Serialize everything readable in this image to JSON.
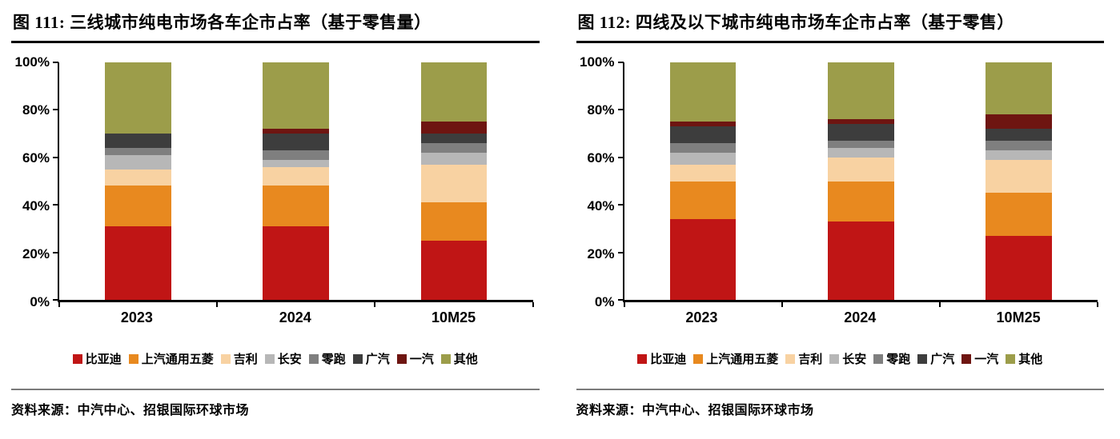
{
  "panels": [
    {
      "title": "图 111: 三线城市纯电市场各车企市占率（基于零售量）",
      "source_label": "资料来源：",
      "source_text": "中汽中心、招银国际环球市场"
    },
    {
      "title": "图 112: 四线及以下城市纯电市场车企市占率（基于零售）",
      "source_label": "资料来源：",
      "source_text": "中汽中心、招银国际环球市场"
    }
  ],
  "chart_data": [
    {
      "type": "bar",
      "stacked": true,
      "percent": true,
      "title": "图 111: 三线城市纯电市场各车企市占率（基于零售量）",
      "categories": [
        "2023",
        "2024",
        "10M25"
      ],
      "xlabel": "",
      "ylabel": "",
      "ylim": [
        0,
        100
      ],
      "y_ticks": [
        "0%",
        "20%",
        "40%",
        "60%",
        "80%",
        "100%"
      ],
      "grid": false,
      "legend_position": "bottom",
      "series": [
        {
          "name": "比亚迪",
          "color": "#c01515",
          "values": [
            31,
            31,
            25
          ]
        },
        {
          "name": "上汽通用五菱",
          "color": "#e8891f",
          "values": [
            17,
            17,
            16
          ]
        },
        {
          "name": "吉利",
          "color": "#f8d2a2",
          "values": [
            7,
            8,
            16
          ]
        },
        {
          "name": "长安",
          "color": "#b7b7b7",
          "values": [
            6,
            3,
            5
          ]
        },
        {
          "name": "零跑",
          "color": "#7f7f7f",
          "values": [
            3,
            4,
            4
          ]
        },
        {
          "name": "广汽",
          "color": "#3d3d3d",
          "values": [
            6,
            7,
            4
          ]
        },
        {
          "name": "一汽",
          "color": "#6e1511",
          "values": [
            0,
            2,
            5
          ]
        },
        {
          "name": "其他",
          "color": "#9c9d4a",
          "values": [
            30,
            28,
            25
          ]
        }
      ]
    },
    {
      "type": "bar",
      "stacked": true,
      "percent": true,
      "title": "图 112: 四线及以下城市纯电市场车企市占率（基于零售）",
      "categories": [
        "2023",
        "2024",
        "10M25"
      ],
      "xlabel": "",
      "ylabel": "",
      "ylim": [
        0,
        100
      ],
      "y_ticks": [
        "0%",
        "20%",
        "40%",
        "60%",
        "80%",
        "100%"
      ],
      "grid": false,
      "legend_position": "bottom",
      "series": [
        {
          "name": "比亚迪",
          "color": "#c01515",
          "values": [
            34,
            33,
            27
          ]
        },
        {
          "name": "上汽通用五菱",
          "color": "#e8891f",
          "values": [
            16,
            17,
            18
          ]
        },
        {
          "name": "吉利",
          "color": "#f8d2a2",
          "values": [
            7,
            10,
            14
          ]
        },
        {
          "name": "长安",
          "color": "#b7b7b7",
          "values": [
            5,
            4,
            4
          ]
        },
        {
          "name": "零跑",
          "color": "#7f7f7f",
          "values": [
            4,
            3,
            4
          ]
        },
        {
          "name": "广汽",
          "color": "#3d3d3d",
          "values": [
            7,
            7,
            5
          ]
        },
        {
          "name": "一汽",
          "color": "#6e1511",
          "values": [
            2,
            2,
            6
          ]
        },
        {
          "name": "其他",
          "color": "#9c9d4a",
          "values": [
            25,
            24,
            22
          ]
        }
      ]
    }
  ]
}
